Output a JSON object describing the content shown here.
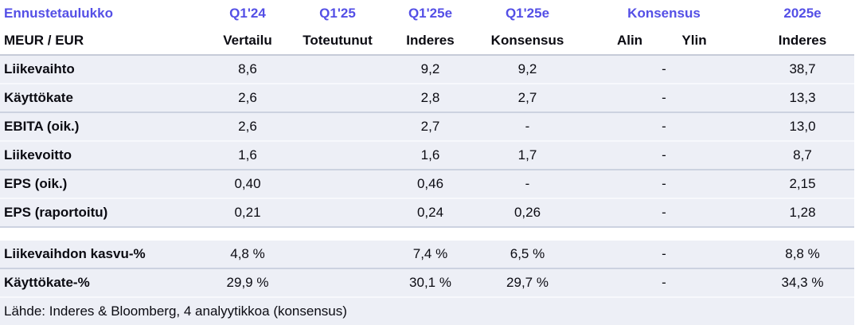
{
  "colors": {
    "accent": "#544fe6",
    "text": "#0b0b12",
    "row_band": "#edeff6"
  },
  "table": {
    "title": "Ennustetaulukko",
    "unit_label": "MEUR / EUR",
    "header_top": {
      "q1_24": "Q1'24",
      "q1_25": "Q1'25",
      "q1_25e_inderes": "Q1'25e",
      "q1_25e_konsensus": "Q1'25e",
      "konsensus": "Konsensus",
      "y2025e": "2025e"
    },
    "header_sub": {
      "q1_24": "Vertailu",
      "q1_25": "Toteutunut",
      "q1_25e_inderes": "Inderes",
      "q1_25e_konsensus": "Konsensus",
      "alin": "Alin",
      "ylin": "Ylin",
      "y2025e": "Inderes"
    },
    "rows": [
      {
        "label": "Liikevaihto",
        "q1_24": "8,6",
        "q1_25": "",
        "q1_25e_inderes": "9,2",
        "q1_25e_konsensus": "9,2",
        "alin_ylin": "-",
        "y2025e": "38,7"
      },
      {
        "label": "Käyttökate",
        "q1_24": "2,6",
        "q1_25": "",
        "q1_25e_inderes": "2,8",
        "q1_25e_konsensus": "2,7",
        "alin_ylin": "-",
        "y2025e": "13,3"
      },
      {
        "label": "EBITA (oik.)",
        "q1_24": "2,6",
        "q1_25": "",
        "q1_25e_inderes": "2,7",
        "q1_25e_konsensus": "-",
        "alin_ylin": "-",
        "y2025e": "13,0"
      },
      {
        "label": "Liikevoitto",
        "q1_24": "1,6",
        "q1_25": "",
        "q1_25e_inderes": "1,6",
        "q1_25e_konsensus": "1,7",
        "alin_ylin": "-",
        "y2025e": "8,7"
      },
      {
        "label": "EPS (oik.)",
        "q1_24": "0,40",
        "q1_25": "",
        "q1_25e_inderes": "0,46",
        "q1_25e_konsensus": "-",
        "alin_ylin": "-",
        "y2025e": "2,15"
      },
      {
        "label": "EPS (raportoitu)",
        "q1_24": "0,21",
        "q1_25": "",
        "q1_25e_inderes": "0,24",
        "q1_25e_konsensus": "0,26",
        "alin_ylin": "-",
        "y2025e": "1,28"
      },
      {
        "label": "Liikevaihdon kasvu-%",
        "q1_24": "4,8 %",
        "q1_25": "",
        "q1_25e_inderes": "7,4 %",
        "q1_25e_konsensus": "6,5 %",
        "alin_ylin": "-",
        "y2025e": "8,8 %"
      },
      {
        "label": "Käyttökate-%",
        "q1_24": "29,9 %",
        "q1_25": "",
        "q1_25e_inderes": "30,1 %",
        "q1_25e_konsensus": "29,7 %",
        "alin_ylin": "-",
        "y2025e": "34,3 %"
      }
    ],
    "footer": "Lähde: Inderes & Bloomberg, 4 analyytikkoa  (konsensus)"
  }
}
